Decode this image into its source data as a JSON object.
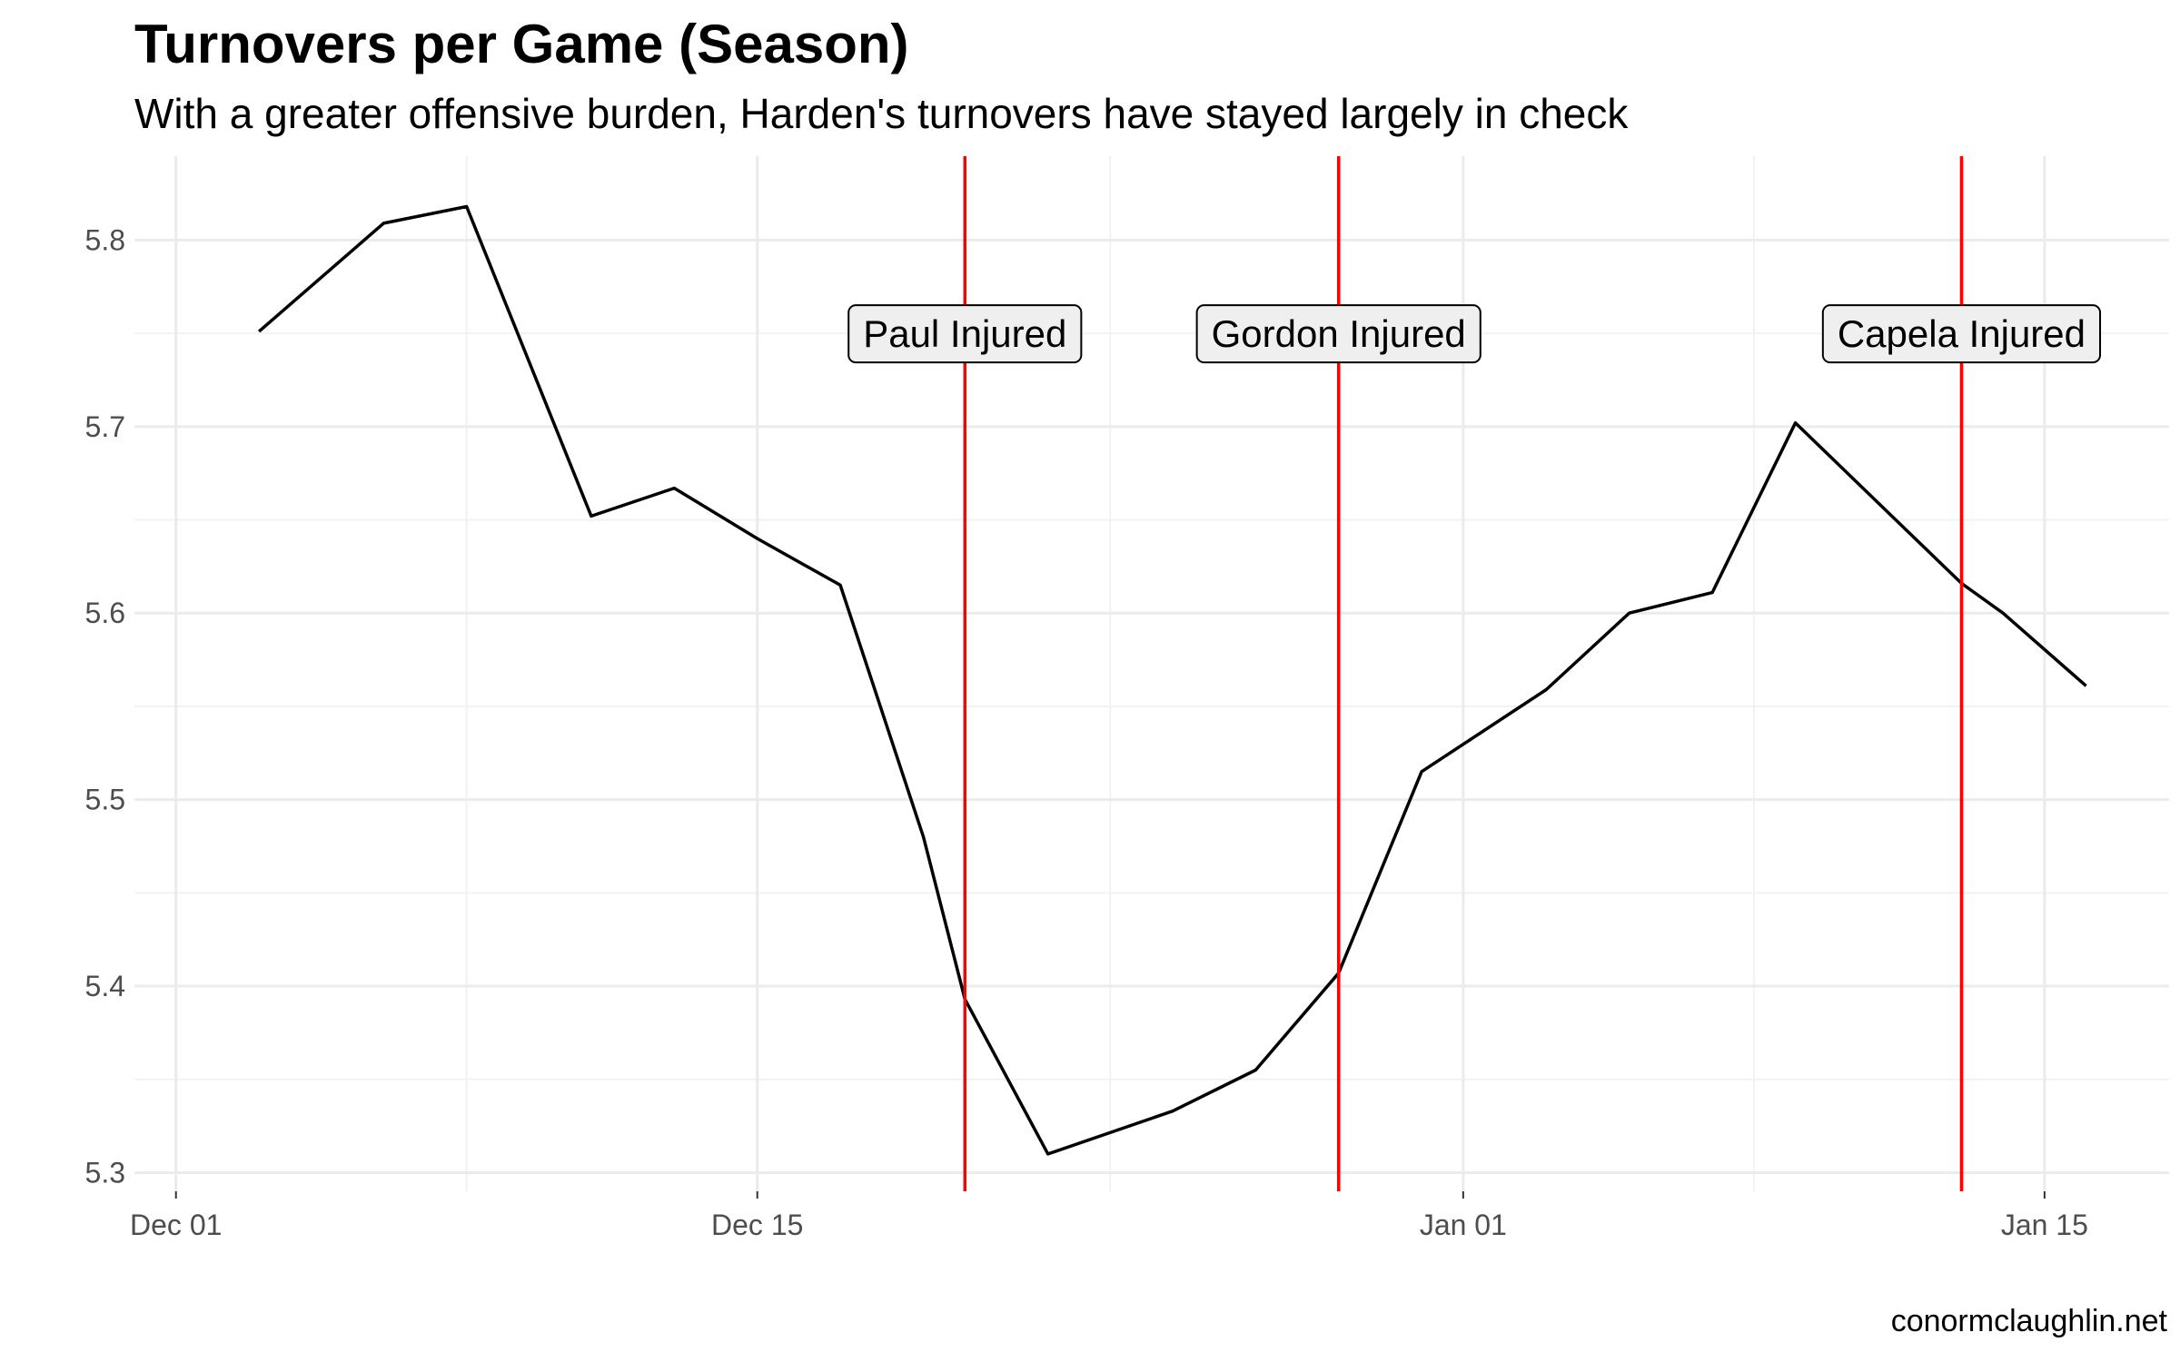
{
  "chart_data": {
    "type": "line",
    "title": "Turnovers per Game (Season)",
    "subtitle": "With a greater offensive burden, Harden's turnovers have stayed largely in check",
    "caption": "conormclaughlin.net",
    "xlabel": "",
    "ylabel": "",
    "xlim": [
      "2017-11-30",
      "2018-01-18"
    ],
    "ylim": [
      5.29,
      5.845
    ],
    "x_ticks": [
      {
        "date": "2017-12-01",
        "label": "Dec 01"
      },
      {
        "date": "2017-12-15",
        "label": "Dec 15"
      },
      {
        "date": "2018-01-01",
        "label": "Jan 01"
      },
      {
        "date": "2018-01-15",
        "label": "Jan 15"
      }
    ],
    "y_ticks": [
      5.3,
      5.4,
      5.5,
      5.6,
      5.7,
      5.8
    ],
    "y_tick_labels": [
      "5.3",
      "5.4",
      "5.5",
      "5.6",
      "5.7",
      "5.8"
    ],
    "grid": true,
    "series": [
      {
        "color": "#000000",
        "points": [
          {
            "x": "2017-12-03",
            "y": 5.751
          },
          {
            "x": "2017-12-06",
            "y": 5.809
          },
          {
            "x": "2017-12-08",
            "y": 5.818
          },
          {
            "x": "2017-12-11",
            "y": 5.652
          },
          {
            "x": "2017-12-13",
            "y": 5.667
          },
          {
            "x": "2017-12-15",
            "y": 5.64
          },
          {
            "x": "2017-12-17",
            "y": 5.615
          },
          {
            "x": "2017-12-19",
            "y": 5.48
          },
          {
            "x": "2017-12-20",
            "y": 5.393
          },
          {
            "x": "2017-12-22",
            "y": 5.31
          },
          {
            "x": "2017-12-25",
            "y": 5.333
          },
          {
            "x": "2017-12-27",
            "y": 5.355
          },
          {
            "x": "2017-12-29",
            "y": 5.407
          },
          {
            "x": "2017-12-31",
            "y": 5.515
          },
          {
            "x": "2018-01-03",
            "y": 5.559
          },
          {
            "x": "2018-01-05",
            "y": 5.6
          },
          {
            "x": "2018-01-07",
            "y": 5.611
          },
          {
            "x": "2018-01-09",
            "y": 5.702
          },
          {
            "x": "2018-01-11",
            "y": 5.659
          },
          {
            "x": "2018-01-13",
            "y": 5.616
          },
          {
            "x": "2018-01-14",
            "y": 5.6
          },
          {
            "x": "2018-01-16",
            "y": 5.561
          }
        ]
      }
    ],
    "annotations": [
      {
        "date": "2017-12-20",
        "label": "Paul Injured",
        "color": "#ff0000"
      },
      {
        "date": "2017-12-29",
        "label": "Gordon Injured",
        "color": "#ff0000"
      },
      {
        "date": "2018-01-13",
        "label": "Capela Injured",
        "color": "#ff0000"
      }
    ],
    "annotation_label_y": 5.75,
    "colors": {
      "grid_major": "#ebebeb",
      "grid_minor": "#f2f2f2",
      "label_fill": "#efefef"
    }
  }
}
